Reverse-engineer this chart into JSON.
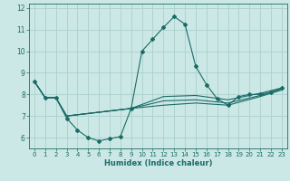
{
  "title": "",
  "xlabel": "Humidex (Indice chaleur)",
  "background_color": "#cce8e6",
  "grid_color": "#aacfcc",
  "line_color": "#1a6b66",
  "xlim": [
    -0.5,
    23.5
  ],
  "ylim": [
    5.5,
    12.2
  ],
  "yticks": [
    6,
    7,
    8,
    9,
    10,
    11,
    12
  ],
  "xticks": [
    0,
    1,
    2,
    3,
    4,
    5,
    6,
    7,
    8,
    9,
    10,
    11,
    12,
    13,
    14,
    15,
    16,
    17,
    18,
    19,
    20,
    21,
    22,
    23
  ],
  "line1_x": [
    0,
    1,
    2,
    3,
    4,
    5,
    6,
    7,
    8,
    9,
    10,
    11,
    12,
    13,
    14,
    15,
    16,
    17,
    18,
    19,
    20,
    21,
    22,
    23
  ],
  "line1_y": [
    8.6,
    7.85,
    7.85,
    6.9,
    6.35,
    6.0,
    5.85,
    5.95,
    6.05,
    7.35,
    10.0,
    10.55,
    11.1,
    11.6,
    11.25,
    9.3,
    8.45,
    7.8,
    7.5,
    7.9,
    8.0,
    8.0,
    8.1,
    8.3
  ],
  "line2_x": [
    0,
    1,
    2,
    3,
    9,
    12,
    15,
    18,
    21,
    23
  ],
  "line2_y": [
    8.6,
    7.85,
    7.85,
    7.0,
    7.35,
    7.5,
    7.6,
    7.5,
    7.9,
    8.2
  ],
  "line3_x": [
    0,
    1,
    2,
    3,
    9,
    12,
    15,
    18,
    21,
    23
  ],
  "line3_y": [
    8.6,
    7.85,
    7.85,
    7.0,
    7.35,
    7.7,
    7.75,
    7.6,
    7.95,
    8.25
  ],
  "line4_x": [
    0,
    1,
    2,
    3,
    9,
    12,
    15,
    18,
    21,
    23
  ],
  "line4_y": [
    8.6,
    7.85,
    7.85,
    7.0,
    7.35,
    7.9,
    7.95,
    7.75,
    8.05,
    8.3
  ]
}
